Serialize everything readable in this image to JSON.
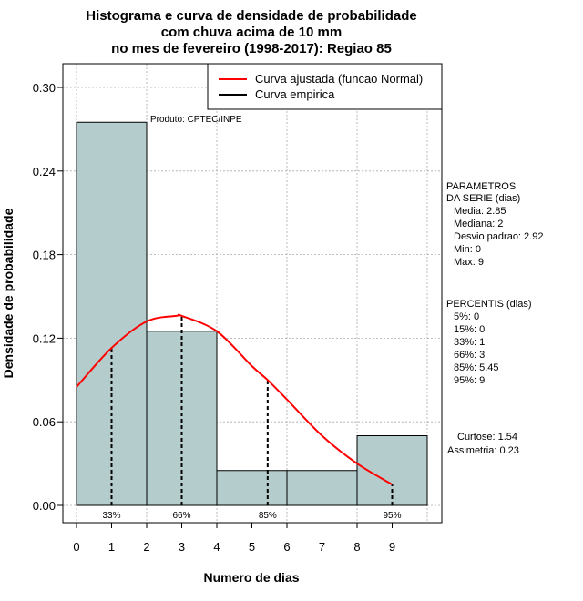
{
  "chart_data": {
    "type": "bar",
    "title": [
      "Histograma e curva de densidade de probabilidade",
      "com chuva acima de 10 mm",
      "no mes de fevereiro (1998-2017): Regiao 85"
    ],
    "xlabel": "Numero de dias",
    "ylabel": "Densidade de probabilidade",
    "xlim": [
      -0.4,
      10.4
    ],
    "ylim": [
      0.0,
      0.315
    ],
    "x_ticks": [
      0,
      1,
      2,
      3,
      4,
      5,
      6,
      7,
      8,
      9
    ],
    "y_ticks": [
      0.0,
      0.06,
      0.12,
      0.18,
      0.24,
      0.3
    ],
    "y_tick_labels": [
      "0.00",
      "0.06",
      "0.12",
      "0.18",
      "0.24",
      "0.30"
    ],
    "grid": true,
    "bins": [
      {
        "start": 0,
        "end": 2,
        "density": 0.275
      },
      {
        "start": 2,
        "end": 4,
        "density": 0.125
      },
      {
        "start": 4,
        "end": 6,
        "density": 0.025
      },
      {
        "start": 6,
        "end": 8,
        "density": 0.025
      },
      {
        "start": 8,
        "end": 10,
        "density": 0.05
      }
    ],
    "bar_color": "#b4cccc",
    "fitted_curve": {
      "name": "Curva ajustada (funcao Normal)",
      "color": "#ff0000",
      "x": [
        0,
        1,
        2,
        2.85,
        3,
        4,
        5,
        5.45,
        6,
        7,
        8,
        9
      ],
      "y": [
        0.085,
        0.113,
        0.132,
        0.136,
        0.136,
        0.125,
        0.1,
        0.09,
        0.076,
        0.05,
        0.03,
        0.015
      ]
    },
    "empirical_curve": {
      "name": "Curva empirica",
      "color": "#000000"
    },
    "percentile_markers": [
      {
        "label": "33%",
        "x": 1
      },
      {
        "label": "66%",
        "x": 3
      },
      {
        "label": "85%",
        "x": 5.45
      },
      {
        "label": "95%",
        "x": 9
      }
    ],
    "annotation": "Produto: CPTEC/INPE",
    "legend_position": "top-right"
  },
  "side_panel": {
    "params_heading": [
      "PARAMETROS",
      "DA SERIE (dias)"
    ],
    "params": [
      "Media: 2.85",
      "Mediana: 2",
      "Desvio padrao: 2.92",
      "Min: 0",
      "Max: 9"
    ],
    "percentis_heading": "PERCENTIS (dias)",
    "percentis": [
      "5%: 0",
      "15%: 0",
      "33%: 1",
      "66%: 3",
      "85%: 5.45",
      "95%: 9"
    ],
    "stats": [
      "Curtose: 1.54",
      "Assimetria: 0.23"
    ]
  }
}
